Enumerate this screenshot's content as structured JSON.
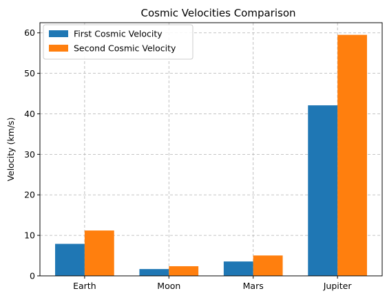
{
  "chart_data": {
    "type": "bar",
    "title": "Cosmic Velocities Comparison",
    "xlabel": "",
    "ylabel": "Velocity (km/s)",
    "categories": [
      "Earth",
      "Moon",
      "Mars",
      "Jupiter"
    ],
    "series": [
      {
        "name": "First Cosmic Velocity",
        "color": "#1f77b4",
        "values": [
          7.9,
          1.68,
          3.55,
          42.1
        ]
      },
      {
        "name": "Second Cosmic Velocity",
        "color": "#ff7f0e",
        "values": [
          11.2,
          2.38,
          5.03,
          59.5
        ]
      }
    ],
    "ylim": [
      0,
      62.5
    ],
    "yticks": [
      0,
      10,
      20,
      30,
      40,
      50,
      60
    ],
    "grid": true,
    "legend_position": "top-left"
  }
}
